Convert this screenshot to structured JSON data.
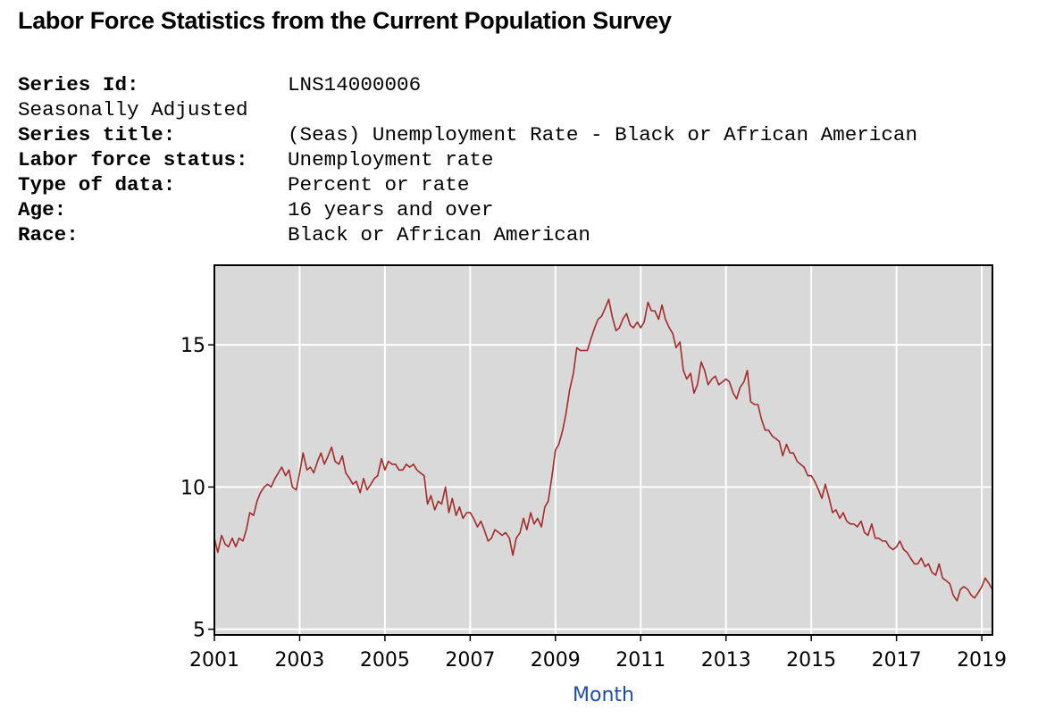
{
  "header": {
    "title": "Labor Force Statistics from the Current Population Survey"
  },
  "series_info": {
    "rows": [
      {
        "key": "Series Id:",
        "value": "LNS14000006",
        "bold": true
      },
      {
        "key": "Seasonally Adjusted",
        "value": "",
        "bold": false
      },
      {
        "key": "Series title:",
        "value": "(Seas) Unemployment Rate - Black or African American",
        "bold": true
      },
      {
        "key": "Labor force status:",
        "value": "Unemployment rate",
        "bold": true
      },
      {
        "key": "Type of data:",
        "value": "Percent or rate",
        "bold": true
      },
      {
        "key": "Age:",
        "value": "16 years and over",
        "bold": true
      },
      {
        "key": "Race:",
        "value": "Black or African American",
        "bold": true
      }
    ]
  },
  "chart_data": {
    "type": "line",
    "title": "",
    "xlabel": "Month",
    "ylabel": "",
    "xlim": [
      2001.0,
      2019.25
    ],
    "ylim": [
      4.8,
      17.8
    ],
    "x_ticks": [
      2001,
      2003,
      2005,
      2007,
      2009,
      2011,
      2013,
      2015,
      2017,
      2019
    ],
    "y_ticks": [
      5,
      10,
      15
    ],
    "grid": true,
    "colors": {
      "line": "#a52a2a",
      "plot_bg": "#d9d9d9",
      "grid": "#ffffff",
      "xlabel": "#1f4fa3"
    },
    "series": [
      {
        "x": [
          2001.0,
          2001.08,
          2001.17,
          2001.25,
          2001.33,
          2001.42,
          2001.5,
          2001.58,
          2001.67,
          2001.75,
          2001.83,
          2001.92,
          2002.0,
          2002.08,
          2002.17,
          2002.25,
          2002.33,
          2002.42,
          2002.5,
          2002.58,
          2002.67,
          2002.75,
          2002.83,
          2002.92,
          2003.0,
          2003.08,
          2003.17,
          2003.25,
          2003.33,
          2003.42,
          2003.5,
          2003.58,
          2003.67,
          2003.75,
          2003.83,
          2003.92,
          2004.0,
          2004.08,
          2004.17,
          2004.25,
          2004.33,
          2004.42,
          2004.5,
          2004.58,
          2004.67,
          2004.75,
          2004.83,
          2004.92,
          2005.0,
          2005.08,
          2005.17,
          2005.25,
          2005.33,
          2005.42,
          2005.5,
          2005.58,
          2005.67,
          2005.75,
          2005.83,
          2005.92,
          2006.0,
          2006.08,
          2006.17,
          2006.25,
          2006.33,
          2006.42,
          2006.5,
          2006.58,
          2006.67,
          2006.75,
          2006.83,
          2006.92,
          2007.0,
          2007.08,
          2007.17,
          2007.25,
          2007.33,
          2007.42,
          2007.5,
          2007.58,
          2007.67,
          2007.75,
          2007.83,
          2007.92,
          2008.0,
          2008.08,
          2008.17,
          2008.25,
          2008.33,
          2008.42,
          2008.5,
          2008.58,
          2008.67,
          2008.75,
          2008.83,
          2008.92,
          2009.0,
          2009.08,
          2009.17,
          2009.25,
          2009.33,
          2009.42,
          2009.5,
          2009.58,
          2009.67,
          2009.75,
          2009.83,
          2009.92,
          2010.0,
          2010.08,
          2010.17,
          2010.25,
          2010.33,
          2010.42,
          2010.5,
          2010.58,
          2010.67,
          2010.75,
          2010.83,
          2010.92,
          2011.0,
          2011.08,
          2011.17,
          2011.25,
          2011.33,
          2011.42,
          2011.5,
          2011.58,
          2011.67,
          2011.75,
          2011.83,
          2011.92,
          2012.0,
          2012.08,
          2012.17,
          2012.25,
          2012.33,
          2012.42,
          2012.5,
          2012.58,
          2012.67,
          2012.75,
          2012.83,
          2012.92,
          2013.0,
          2013.08,
          2013.17,
          2013.25,
          2013.33,
          2013.42,
          2013.5,
          2013.58,
          2013.67,
          2013.75,
          2013.83,
          2013.92,
          2014.0,
          2014.08,
          2014.17,
          2014.25,
          2014.33,
          2014.42,
          2014.5,
          2014.58,
          2014.67,
          2014.75,
          2014.83,
          2014.92,
          2015.0,
          2015.08,
          2015.17,
          2015.25,
          2015.33,
          2015.42,
          2015.5,
          2015.58,
          2015.67,
          2015.75,
          2015.83,
          2015.92,
          2016.0,
          2016.08,
          2016.17,
          2016.25,
          2016.33,
          2016.42,
          2016.5,
          2016.58,
          2016.67,
          2016.75,
          2016.83,
          2016.92,
          2017.0,
          2017.08,
          2017.17,
          2017.25,
          2017.33,
          2017.42,
          2017.5,
          2017.58,
          2017.67,
          2017.75,
          2017.83,
          2017.92,
          2018.0,
          2018.08,
          2018.17,
          2018.25,
          2018.33,
          2018.42,
          2018.5,
          2018.58,
          2018.67,
          2018.75,
          2018.83,
          2018.92,
          2019.0,
          2019.08,
          2019.17,
          2019.25
        ],
        "y": [
          8.2,
          7.7,
          8.3,
          8.0,
          7.9,
          8.2,
          7.9,
          8.2,
          8.1,
          8.5,
          9.1,
          9.0,
          9.5,
          9.8,
          10.0,
          10.1,
          10.0,
          10.3,
          10.5,
          10.7,
          10.4,
          10.6,
          10.0,
          9.9,
          10.5,
          11.2,
          10.6,
          10.7,
          10.5,
          10.9,
          11.2,
          10.8,
          11.1,
          11.4,
          10.9,
          10.8,
          11.1,
          10.5,
          10.3,
          10.1,
          10.2,
          9.8,
          10.3,
          9.9,
          10.1,
          10.3,
          10.4,
          11.0,
          10.6,
          10.9,
          10.8,
          10.8,
          10.6,
          10.6,
          10.8,
          10.7,
          10.8,
          10.6,
          10.5,
          10.4,
          9.4,
          9.7,
          9.2,
          9.5,
          9.4,
          10.0,
          9.1,
          9.6,
          9.0,
          9.3,
          8.9,
          9.1,
          9.1,
          8.9,
          8.6,
          8.8,
          8.5,
          8.1,
          8.2,
          8.5,
          8.4,
          8.3,
          8.4,
          8.2,
          7.6,
          8.2,
          8.4,
          8.9,
          8.5,
          9.1,
          8.7,
          8.9,
          8.6,
          9.3,
          9.5,
          10.4,
          11.3,
          11.5,
          12.0,
          12.6,
          13.4,
          14.0,
          14.9,
          14.8,
          14.8,
          14.8,
          15.2,
          15.6,
          15.9,
          16.0,
          16.3,
          16.6,
          16.0,
          15.5,
          15.6,
          15.9,
          16.1,
          15.7,
          15.6,
          15.8,
          15.6,
          15.8,
          16.5,
          16.2,
          16.2,
          15.9,
          16.4,
          15.9,
          15.6,
          15.4,
          14.9,
          15.1,
          14.1,
          13.8,
          14.0,
          13.3,
          13.6,
          14.4,
          14.1,
          13.6,
          13.8,
          13.9,
          13.6,
          13.7,
          13.8,
          13.7,
          13.3,
          13.1,
          13.5,
          13.7,
          14.1,
          13.0,
          12.9,
          12.9,
          12.4,
          12.0,
          12.0,
          11.8,
          11.7,
          11.6,
          11.1,
          11.5,
          11.2,
          11.2,
          10.9,
          10.8,
          10.7,
          10.4,
          10.4,
          10.2,
          9.9,
          9.6,
          10.1,
          9.6,
          9.1,
          9.2,
          8.9,
          9.1,
          8.8,
          8.7,
          8.7,
          8.6,
          8.8,
          8.4,
          8.3,
          8.7,
          8.2,
          8.2,
          8.1,
          8.1,
          7.9,
          7.8,
          7.9,
          8.1,
          7.8,
          7.7,
          7.5,
          7.3,
          7.3,
          7.5,
          7.2,
          7.3,
          7.0,
          6.9,
          7.3,
          6.8,
          6.7,
          6.6,
          6.2,
          6.0,
          6.4,
          6.5,
          6.4,
          6.2,
          6.1,
          6.3,
          6.5,
          6.8,
          6.6,
          6.4
        ]
      }
    ]
  }
}
